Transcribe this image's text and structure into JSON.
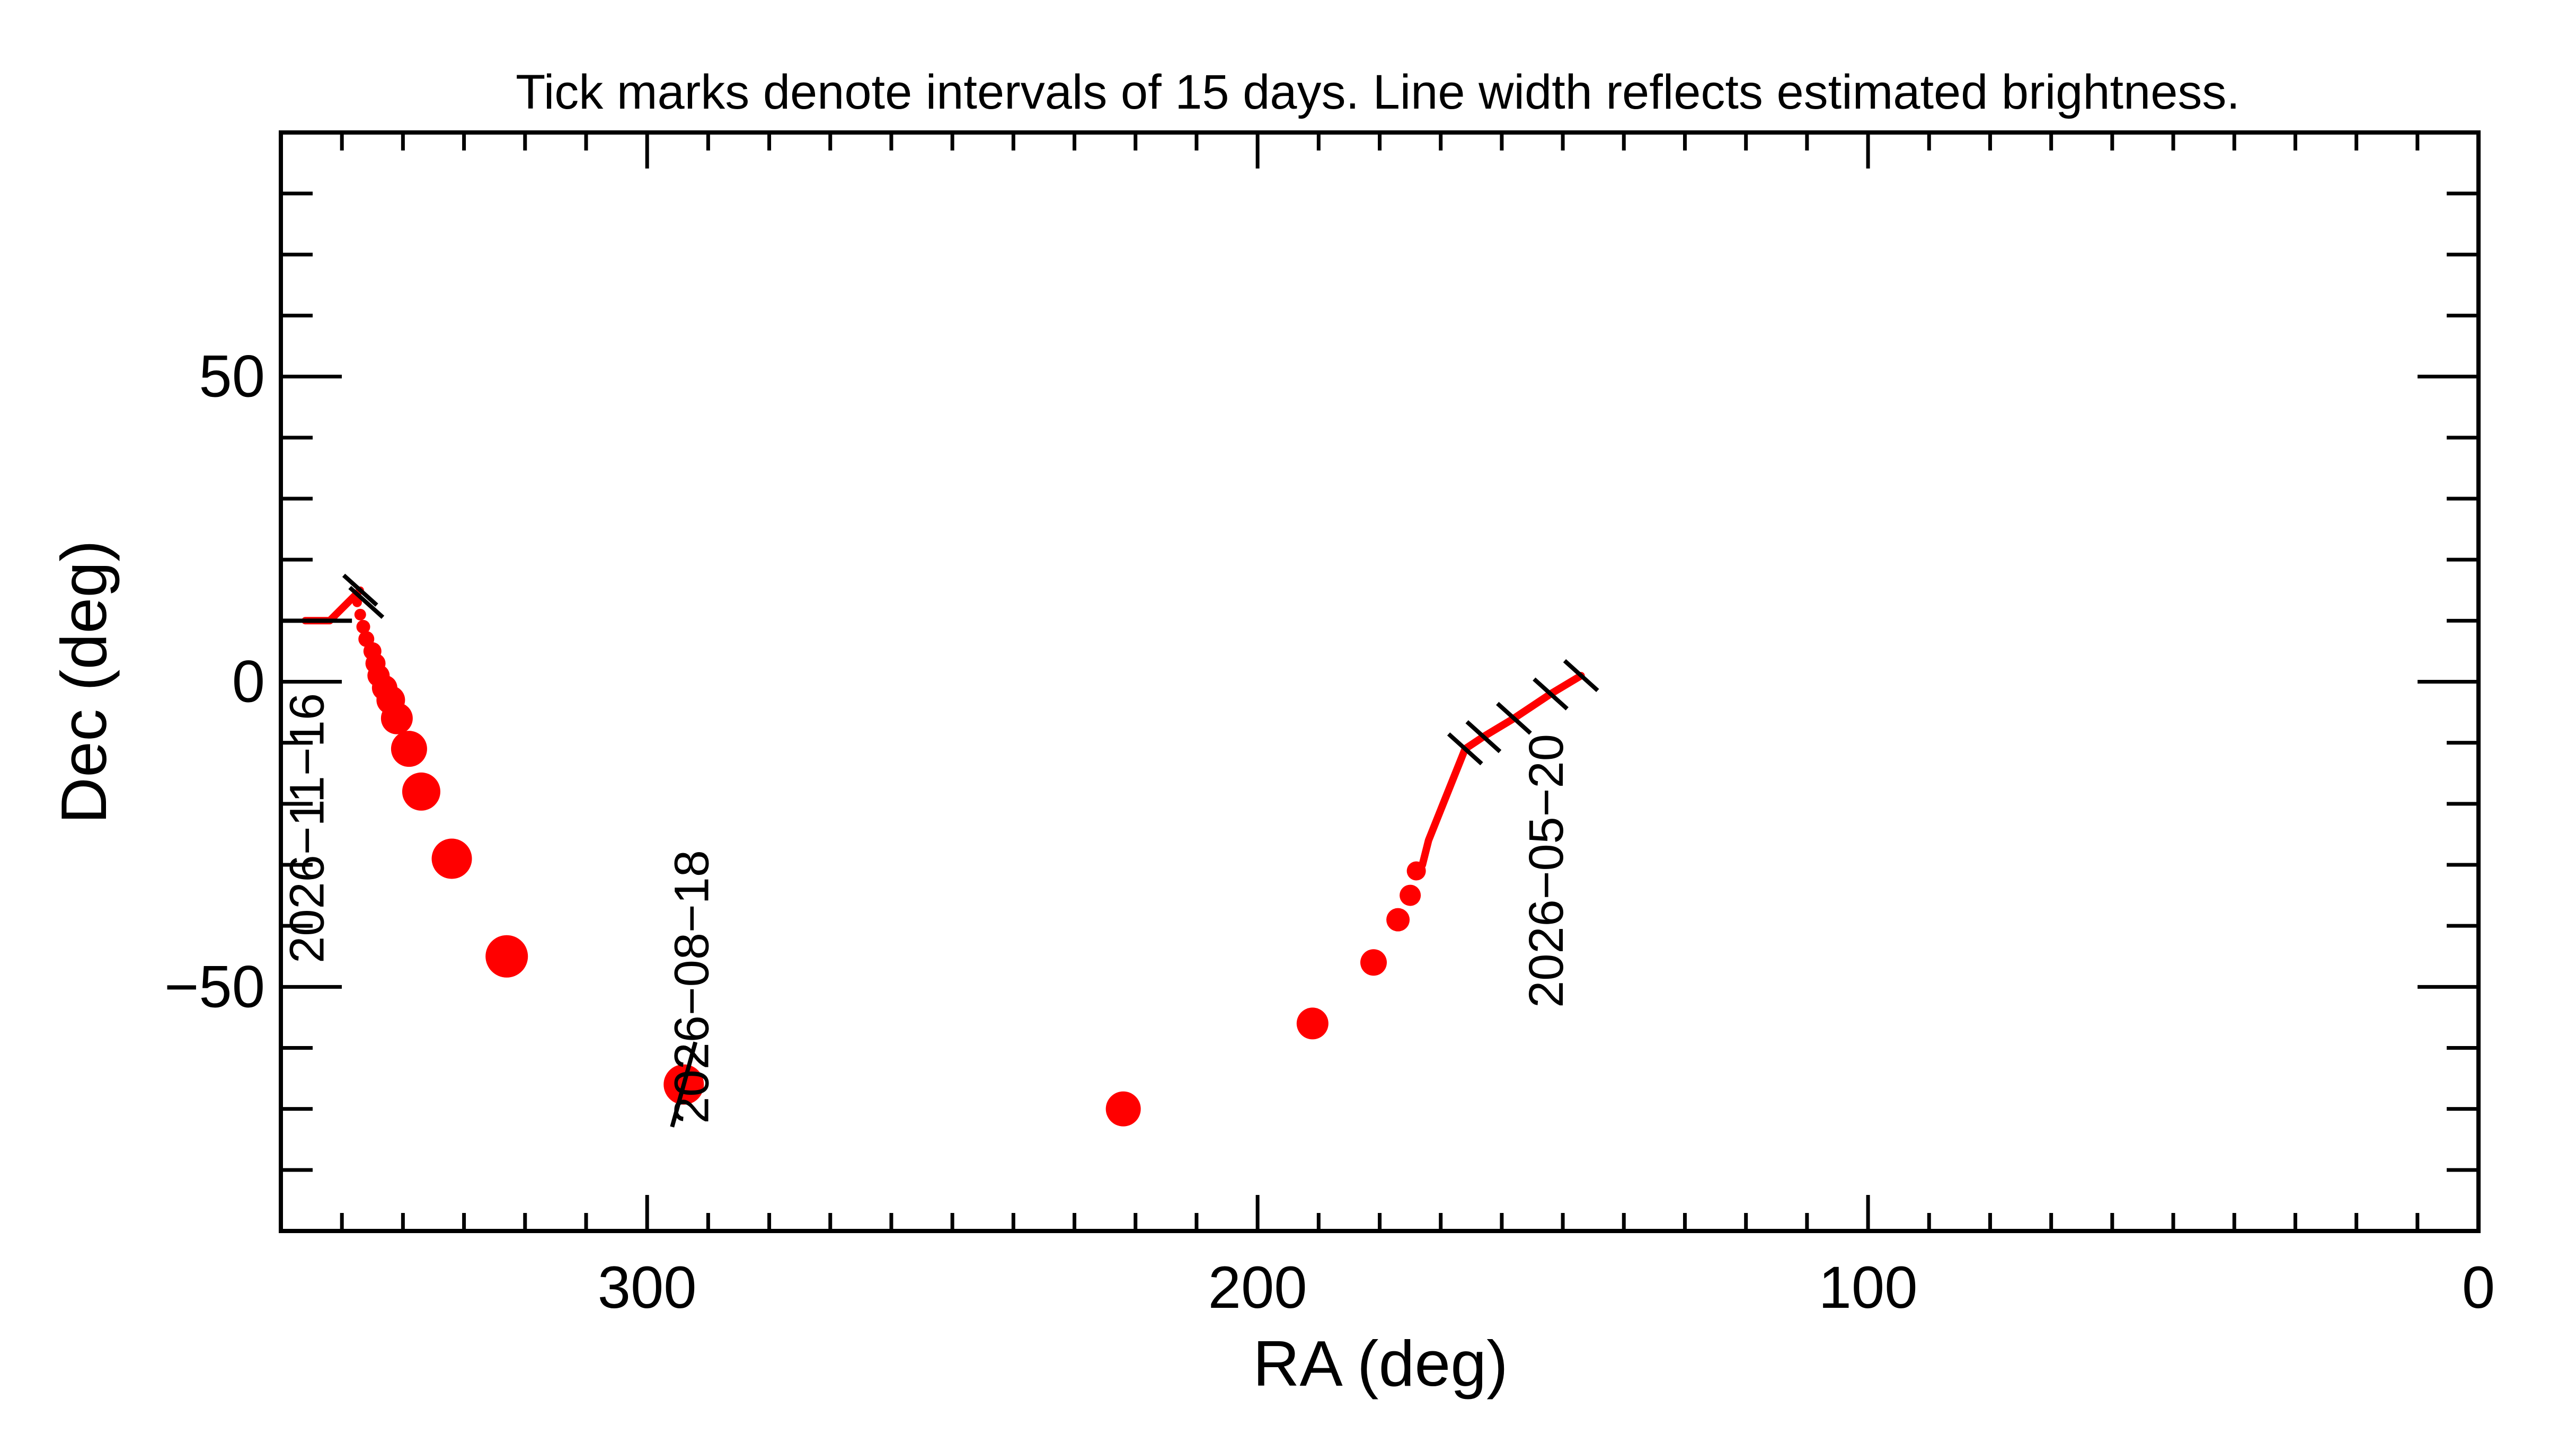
{
  "chart_data": {
    "type": "scatter",
    "title": "Tick marks denote intervals of 15 days.  Line width reflects estimated brightness.",
    "xlabel": "RA (deg)",
    "ylabel": "Dec (deg)",
    "xlim": [
      360,
      0
    ],
    "ylim": [
      -90,
      90
    ],
    "x_ticks": [
      {
        "value": 300,
        "label": "300"
      },
      {
        "value": 200,
        "label": "200"
      },
      {
        "value": 100,
        "label": "100"
      },
      {
        "value": 0,
        "label": "0"
      }
    ],
    "y_ticks": [
      {
        "value": 50,
        "label": "50"
      },
      {
        "value": 0,
        "label": "0"
      },
      {
        "value": -50,
        "label": "−50"
      }
    ],
    "grid": false,
    "colors": {
      "track": "#ff0000",
      "marks": "#000000"
    },
    "track_segments": [
      [
        [
          147,
          1
        ],
        [
          152,
          -2
        ],
        [
          158,
          -6
        ],
        [
          163,
          -9
        ],
        [
          166,
          -11
        ]
      ],
      [
        [
          166,
          -11
        ],
        [
          168,
          -16
        ],
        [
          170,
          -21
        ],
        [
          172,
          -26
        ],
        [
          173,
          -30
        ]
      ],
      [
        [
          356,
          10
        ],
        [
          352,
          10
        ],
        [
          349,
          13
        ],
        [
          347,
          15
        ]
      ]
    ],
    "points": [
      {
        "ra": 174,
        "dec": -31,
        "size": 0.18
      },
      {
        "ra": 175,
        "dec": -35,
        "size": 0.2
      },
      {
        "ra": 177,
        "dec": -39,
        "size": 0.22
      },
      {
        "ra": 181,
        "dec": -46,
        "size": 0.25
      },
      {
        "ra": 191,
        "dec": -56,
        "size": 0.3
      },
      {
        "ra": 222,
        "dec": -70,
        "size": 0.33
      },
      {
        "ra": 294,
        "dec": -66,
        "size": 0.38
      },
      {
        "ra": 323,
        "dec": -45,
        "size": 0.4
      },
      {
        "ra": 332,
        "dec": -29,
        "size": 0.38
      },
      {
        "ra": 337,
        "dec": -18,
        "size": 0.36
      },
      {
        "ra": 339,
        "dec": -11,
        "size": 0.34
      },
      {
        "ra": 341,
        "dec": -6,
        "size": 0.3
      },
      {
        "ra": 342,
        "dec": -3,
        "size": 0.27
      },
      {
        "ra": 343,
        "dec": -1,
        "size": 0.24
      },
      {
        "ra": 344,
        "dec": 1,
        "size": 0.21
      },
      {
        "ra": 344.5,
        "dec": 3,
        "size": 0.19
      },
      {
        "ra": 345,
        "dec": 5,
        "size": 0.17
      },
      {
        "ra": 346,
        "dec": 7,
        "size": 0.15
      },
      {
        "ra": 346.5,
        "dec": 9,
        "size": 0.13
      },
      {
        "ra": 347,
        "dec": 11,
        "size": 0.11
      },
      {
        "ra": 347.5,
        "dec": 13,
        "size": 0.09
      }
    ],
    "interval_ticks": [
      {
        "ra": 147,
        "dec": 1,
        "angle": 42
      },
      {
        "ra": 152,
        "dec": -2,
        "angle": 42
      },
      {
        "ra": 158,
        "dec": -6,
        "angle": 42
      },
      {
        "ra": 163,
        "dec": -9,
        "angle": 42
      },
      {
        "ra": 166,
        "dec": -11,
        "angle": 42
      },
      {
        "ra": 294,
        "dec": -66,
        "angle": 0
      },
      {
        "ra": 346,
        "dec": 13,
        "angle": 42
      },
      {
        "ra": 347,
        "dec": 15,
        "angle": 42
      },
      {
        "ra": 352,
        "dec": 10,
        "angle": 0
      },
      {
        "ra": 356,
        "dec": 10,
        "angle": 0
      }
    ],
    "annotations": [
      {
        "text": "2026−05−20",
        "ra": 150,
        "dec": -31
      },
      {
        "text": "2026−08−18",
        "ra": 290,
        "dec": -50
      },
      {
        "text": "2026−11−16",
        "ra": 353,
        "dec": -24
      }
    ]
  }
}
